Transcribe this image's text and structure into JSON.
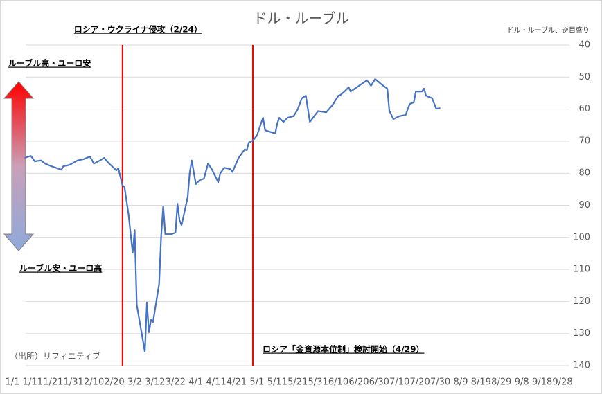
{
  "chart_data": {
    "type": "line",
    "title": "ドル・ルーブル",
    "y_axis_note": "ドル・ルーブル、逆目盛り",
    "source": "（出所）リフィニティブ",
    "direction_labels": {
      "up": "ルーブル高・ユーロ安",
      "down": "ルーブル安・ユーロ高"
    },
    "annotations": [
      {
        "x": "2/24",
        "label": "ロシア・ウクライナ侵攻（2/24）"
      },
      {
        "x": "4/29",
        "label": "ロシア「金資源本位制」検討開始（4/29）"
      }
    ],
    "color": "#4472c4",
    "ylim": [
      40,
      140
    ],
    "y_inverted": true,
    "yticks": [
      40,
      50,
      60,
      70,
      80,
      90,
      100,
      110,
      120,
      130,
      140
    ],
    "grid": true,
    "xlim": [
      "1/1",
      "9/28"
    ],
    "xticks": [
      "1/1",
      "1/11",
      "1/21",
      "1/31",
      "2/10",
      "2/20",
      "3/2",
      "3/12",
      "3/22",
      "4/1",
      "4/11",
      "4/21",
      "5/1",
      "5/11",
      "5/21",
      "5/31",
      "6/10",
      "6/20",
      "6/30",
      "7/10",
      "7/20",
      "7/30",
      "8/9",
      "8/19",
      "8/29",
      "9/8",
      "9/18",
      "9/28"
    ],
    "x": [
      "1/7",
      "1/10",
      "1/12",
      "1/15",
      "1/17",
      "1/20",
      "1/25",
      "1/26",
      "1/29",
      "2/2",
      "2/5",
      "2/8",
      "2/10",
      "2/13",
      "2/15",
      "2/17",
      "2/21",
      "2/22",
      "2/24",
      "2/25",
      "2/27",
      "3/1",
      "3/2",
      "3/3",
      "3/7",
      "3/8",
      "3/9",
      "3/10",
      "3/11",
      "3/14",
      "3/15",
      "3/16",
      "3/17",
      "3/20",
      "3/22",
      "3/23",
      "3/24",
      "3/25",
      "3/28",
      "3/29",
      "3/30",
      "4/1",
      "4/3",
      "4/5",
      "4/7",
      "4/9",
      "4/12",
      "4/13",
      "4/15",
      "4/18",
      "4/19",
      "4/22",
      "4/25",
      "4/26",
      "4/27",
      "4/29",
      "5/1",
      "5/3",
      "5/4",
      "5/5",
      "5/10",
      "5/11",
      "5/12",
      "5/14",
      "5/16",
      "5/19",
      "5/21",
      "5/23",
      "5/25",
      "5/27",
      "5/31",
      "6/4",
      "6/7",
      "6/10",
      "6/11",
      "6/13",
      "6/15",
      "6/16",
      "6/19",
      "6/24",
      "6/26",
      "6/28",
      "7/2",
      "7/4",
      "7/5",
      "7/7",
      "7/10",
      "7/13",
      "7/15",
      "7/17",
      "7/18",
      "7/21",
      "7/22",
      "7/23",
      "7/26",
      "7/28",
      "7/30"
    ],
    "values": [
      75.2,
      74.6,
      76.3,
      76,
      77,
      77.8,
      78.9,
      77.8,
      77.4,
      76,
      75.6,
      74.8,
      77,
      76,
      75.2,
      76.7,
      79.1,
      78.5,
      83.8,
      84.3,
      92.9,
      104.8,
      97.7,
      121,
      135.7,
      120.3,
      129.6,
      125.7,
      126.4,
      114.5,
      99.4,
      90.3,
      99,
      99,
      98.5,
      89.5,
      94.6,
      96.2,
      87.5,
      80,
      76,
      83.4,
      82.1,
      81.7,
      77,
      78.9,
      82.8,
      80,
      78.3,
      78.7,
      79.6,
      75.2,
      72.6,
      72.8,
      70.5,
      69.8,
      68.3,
      64.4,
      62.7,
      66.6,
      67.6,
      64.4,
      62.7,
      64,
      62.7,
      62.2,
      60.1,
      56.6,
      55.8,
      64,
      60.6,
      61,
      58.8,
      55.8,
      55.6,
      54.5,
      53.2,
      54.5,
      53.2,
      51,
      52.7,
      50.6,
      52.7,
      53.6,
      60.5,
      63.1,
      62.2,
      61.8,
      58.4,
      57.9,
      54.5,
      54.5,
      53.6,
      55.8,
      56.6,
      59.9,
      59.7
    ]
  }
}
